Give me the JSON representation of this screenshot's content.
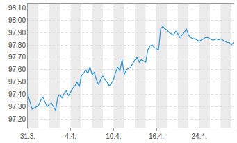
{
  "chart_data": {
    "type": "line",
    "categories": [
      "31.3.",
      null,
      null,
      null,
      null,
      null,
      null,
      null,
      null,
      null,
      null,
      null,
      null,
      null,
      null,
      null,
      null,
      null,
      null,
      null,
      "4.4.",
      null,
      null,
      null,
      null,
      null,
      null,
      null,
      null,
      null,
      null,
      null,
      null,
      null,
      null,
      null,
      null,
      null,
      null,
      null,
      "10.4.",
      null,
      null,
      null,
      null,
      null,
      null,
      null,
      null,
      null,
      null,
      null,
      null,
      null,
      null,
      null,
      null,
      null,
      null,
      null,
      "16.4.",
      null,
      null,
      null,
      null,
      null,
      null,
      null,
      null,
      null,
      null,
      null,
      null,
      null,
      null,
      null,
      null,
      null,
      null,
      null,
      "24.4.",
      null,
      null,
      null,
      null,
      null,
      null,
      null,
      null,
      null,
      null,
      null,
      null,
      null,
      null,
      null,
      null
    ],
    "values": [
      97.4,
      97.34,
      97.28,
      97.29,
      97.3,
      97.31,
      97.35,
      97.38,
      97.34,
      97.3,
      97.32,
      97.33,
      97.3,
      97.27,
      97.38,
      97.4,
      97.37,
      97.41,
      97.43,
      97.39,
      97.42,
      97.45,
      97.47,
      97.5,
      97.46,
      97.55,
      97.57,
      97.6,
      97.57,
      97.62,
      97.56,
      97.58,
      97.52,
      97.48,
      97.52,
      97.55,
      97.52,
      97.5,
      97.47,
      97.49,
      97.52,
      97.58,
      97.62,
      97.59,
      97.68,
      97.56,
      97.6,
      97.61,
      97.62,
      97.65,
      97.68,
      97.7,
      97.66,
      97.68,
      97.67,
      97.66,
      97.76,
      97.79,
      97.8,
      97.78,
      97.77,
      97.76,
      97.93,
      97.95,
      97.93,
      97.92,
      97.9,
      97.89,
      97.88,
      97.91,
      97.89,
      97.86,
      97.88,
      97.9,
      97.93,
      97.88,
      97.86,
      97.85,
      97.85,
      97.84,
      97.83,
      97.84,
      97.85,
      97.86,
      97.86,
      97.85,
      97.84,
      97.84,
      97.85,
      97.84,
      97.85,
      97.84,
      97.83,
      97.82,
      97.82,
      97.8,
      97.82
    ],
    "color": "#2a93d5",
    "ylim": [
      97.13,
      98.13
    ],
    "yticks": [
      {
        "value": 97.2,
        "label": "97,20"
      },
      {
        "value": 97.3,
        "label": "97,30"
      },
      {
        "value": 97.4,
        "label": "97,40"
      },
      {
        "value": 97.5,
        "label": "97,50"
      },
      {
        "value": 97.6,
        "label": "97,60"
      },
      {
        "value": 97.7,
        "label": "97,70"
      },
      {
        "value": 97.8,
        "label": "97,80"
      },
      {
        "value": 97.9,
        "label": "97,90"
      },
      {
        "value": 98.0,
        "label": "98,00"
      },
      {
        "value": 98.1,
        "label": "98,10"
      }
    ],
    "grid": true
  }
}
